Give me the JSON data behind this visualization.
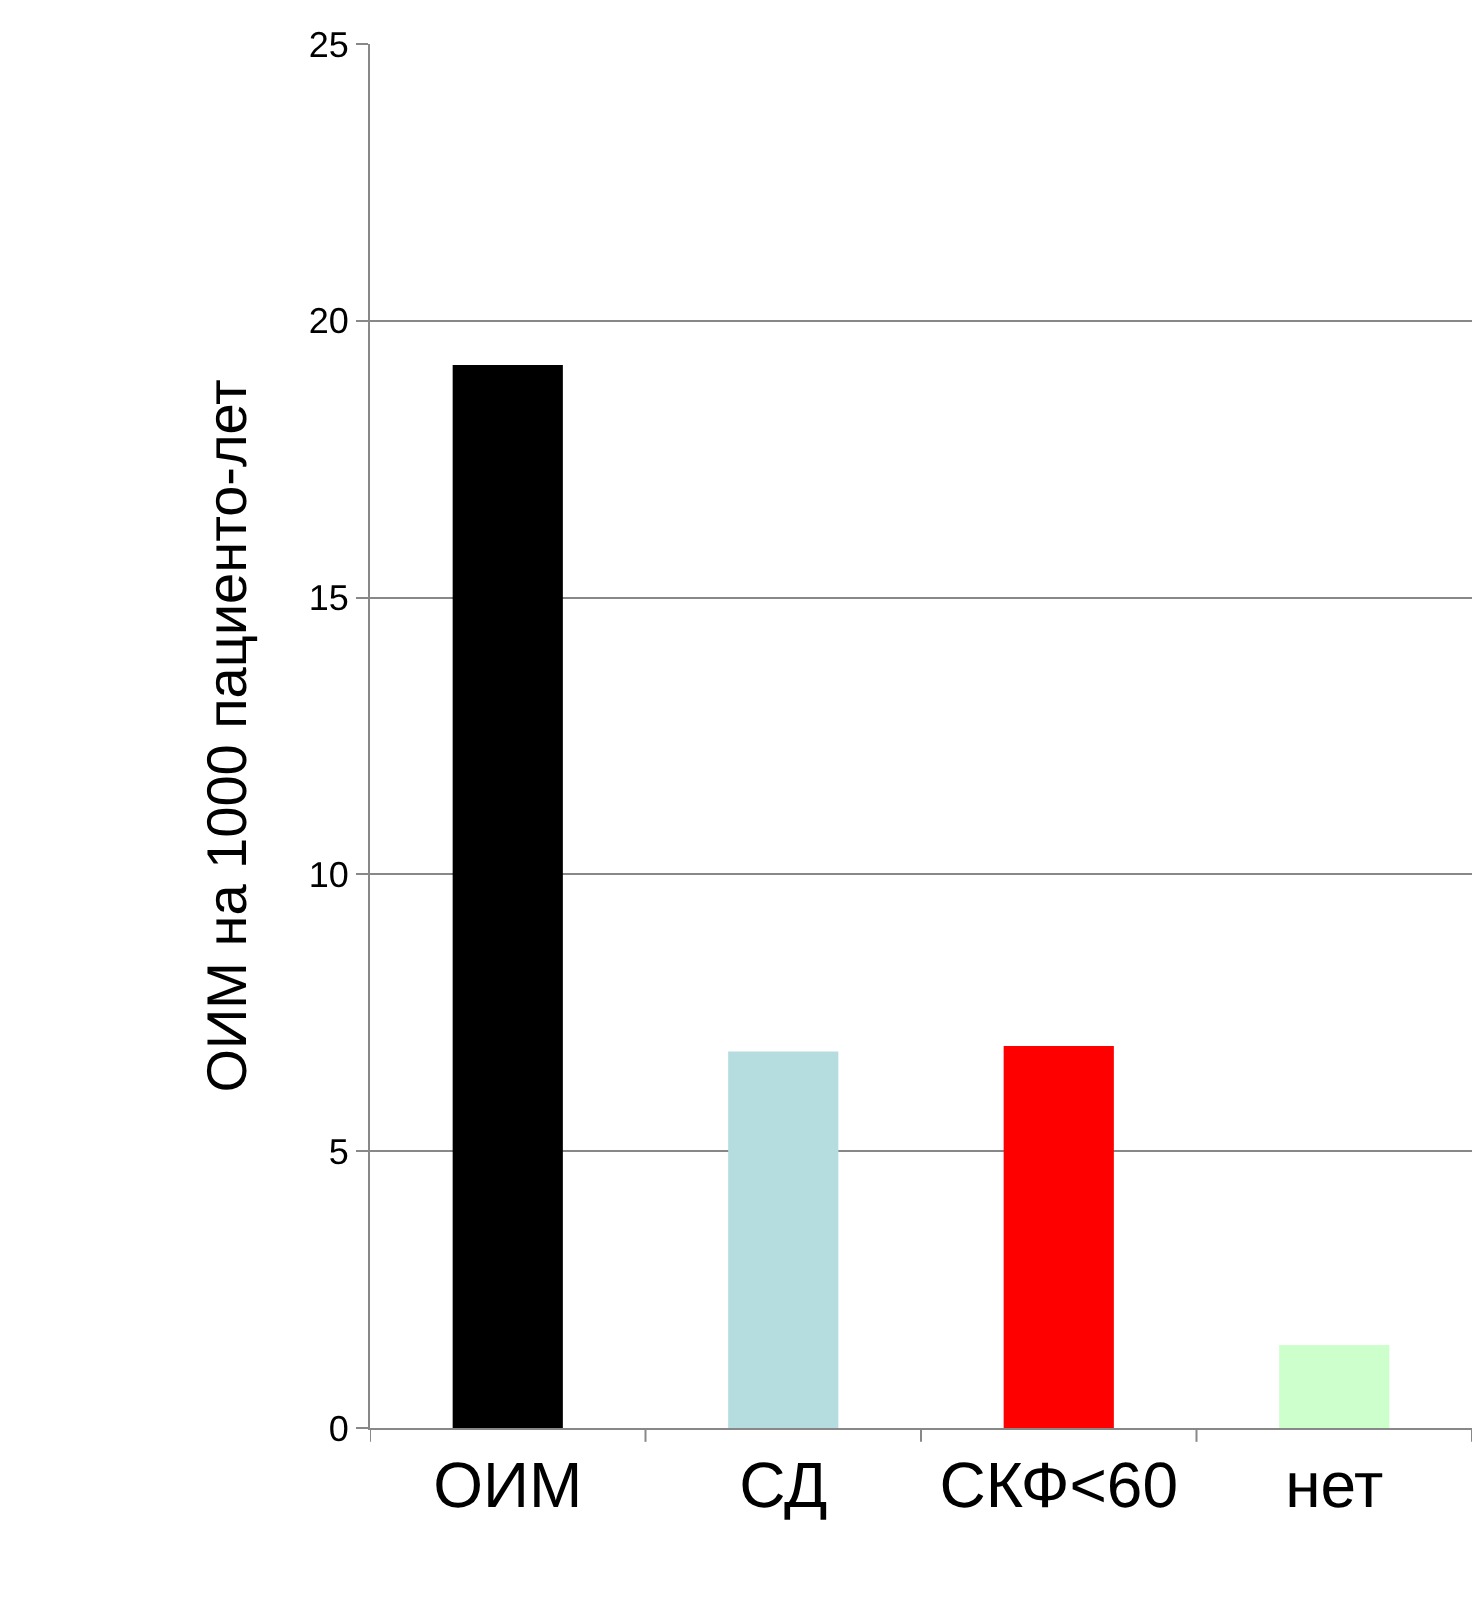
{
  "chart_data": {
    "type": "bar",
    "ylabel": "ОИМ на 1000 пациенто-лет",
    "categories": [
      "ОИМ",
      "СД",
      "СКФ<60",
      "нет"
    ],
    "values": [
      19.2,
      6.8,
      6.9,
      1.5
    ],
    "colors": [
      "#000000",
      "#b5dde0",
      "#ff0000",
      "#ccffcc"
    ],
    "ylim": [
      0,
      25
    ],
    "yticks": [
      0,
      5,
      10,
      15,
      20,
      25
    ],
    "grid": "y"
  }
}
